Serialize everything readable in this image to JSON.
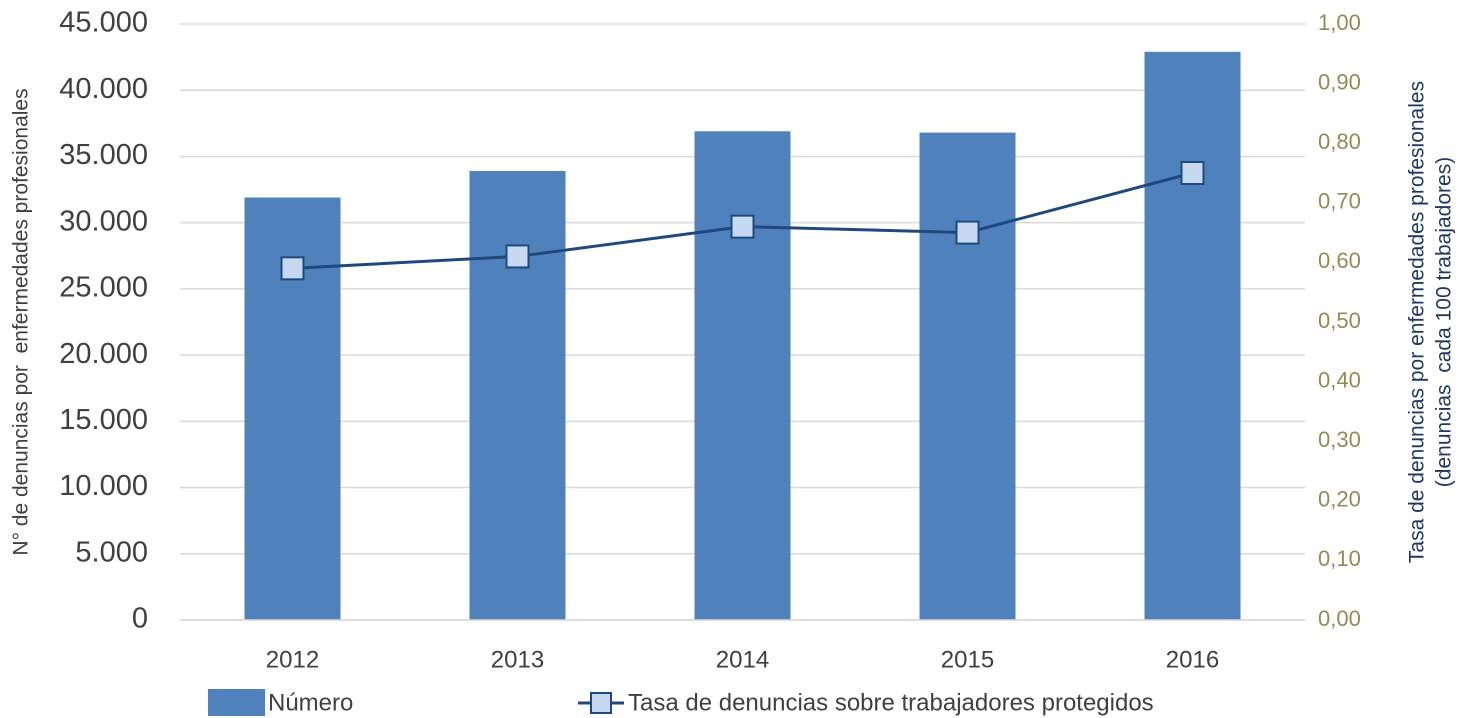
{
  "chart_data": {
    "type": "bar",
    "categories": [
      "2012",
      "2013",
      "2014",
      "2015",
      "2016"
    ],
    "series": [
      {
        "name": "Número",
        "type": "bar",
        "color": "#4f81bd",
        "values": [
          31900,
          33900,
          36900,
          36800,
          42900
        ]
      },
      {
        "name": "Tasa de denuncias sobre trabajadores protegidos",
        "type": "line",
        "axis": "y2",
        "color": "#1f497d",
        "marker_color": "#c6d9f1",
        "values": [
          0.59,
          0.61,
          0.66,
          0.65,
          0.75
        ]
      }
    ],
    "y_label": "N° de denuncias por  enfermedades profesionales",
    "y2_label": [
      "Tasa de denuncias por enfermedades profesionales",
      "(denuncias  cada 100 trabajadores)"
    ],
    "ylim": [
      0,
      45000
    ],
    "yticks": [
      0,
      {
        "value": 5000,
        "label": "5.000"
      },
      {
        "value": 10000,
        "label": "10.000"
      },
      {
        "value": 15000,
        "label": "15.000"
      },
      {
        "value": 20000,
        "label": "20.000"
      },
      {
        "value": 25000,
        "label": "25.000"
      },
      {
        "value": 30000,
        "label": "30.000"
      },
      {
        "value": 35000,
        "label": "35.000"
      },
      {
        "value": 40000,
        "label": "40.000"
      },
      {
        "value": 45000,
        "label": "45.000"
      }
    ],
    "y2lim": [
      0,
      1
    ],
    "y2ticks": [
      {
        "value": 0,
        "label": "0,00"
      },
      {
        "value": 0.1,
        "label": "0,10"
      },
      {
        "value": 0.2,
        "label": "0,20"
      },
      {
        "value": 0.3,
        "label": "0,30"
      },
      {
        "value": 0.4,
        "label": "0,40"
      },
      {
        "value": 0.5,
        "label": "0,50"
      },
      {
        "value": 0.6,
        "label": "0,60"
      },
      {
        "value": 0.7,
        "label": "0,70"
      },
      {
        "value": 0.8,
        "label": "0,80"
      },
      {
        "value": 0.9,
        "label": "0,90"
      },
      {
        "value": 1,
        "label": "1,00"
      }
    ],
    "grid": true,
    "legend": "bottom"
  }
}
